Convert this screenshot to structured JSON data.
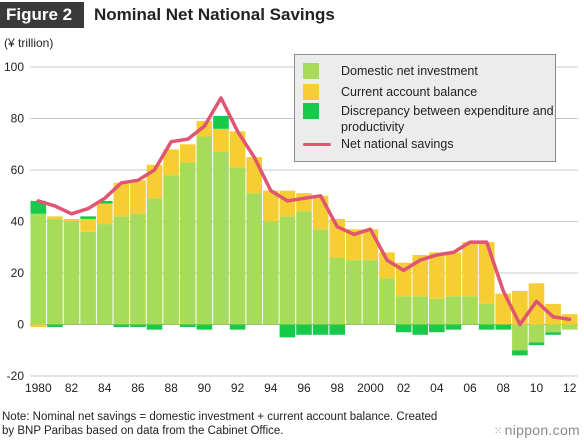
{
  "header": {
    "figure_label": "Figure 2",
    "title": "Nominal Net National Savings"
  },
  "unit_label": "(¥ trillion)",
  "note": "Note: Nominal net savings = domestic investment + current account balance. Created\nby BNP Paribas based on data from the Cabinet Office.",
  "brand": {
    "text": "nippon.com",
    "dots": "⁙"
  },
  "colors": {
    "domestic": "#a6dc5a",
    "current": "#f6cd32",
    "discrepancy": "#18c94a",
    "line": "#e05571",
    "grid": "#c8c8c8"
  },
  "legend": [
    {
      "label": "Domestic net investment",
      "kind": "box",
      "color": "#a6dc5a"
    },
    {
      "label": "Current account balance",
      "kind": "box",
      "color": "#f6cd32"
    },
    {
      "label": "Discrepancy between expenditure and productivity",
      "kind": "box",
      "color": "#18c94a"
    },
    {
      "label": "Net national savings",
      "kind": "line",
      "color": "#e05571"
    }
  ],
  "chart_data": {
    "type": "bar",
    "subtype": "stacked bar with line",
    "x": [
      1980,
      1981,
      1982,
      1983,
      1984,
      1985,
      1986,
      1987,
      1988,
      1989,
      1990,
      1991,
      1992,
      1993,
      1994,
      1995,
      1996,
      1997,
      1998,
      1999,
      2000,
      2001,
      2002,
      2003,
      2004,
      2005,
      2006,
      2007,
      2008,
      2009,
      2010,
      2011,
      2012
    ],
    "x_tick_labels": [
      "1980",
      "82",
      "84",
      "86",
      "88",
      "90",
      "92",
      "94",
      "96",
      "98",
      "2000",
      "02",
      "04",
      "06",
      "08",
      "10",
      "12"
    ],
    "x_tick_years": [
      1980,
      1982,
      1984,
      1986,
      1988,
      1990,
      1992,
      1994,
      1996,
      1998,
      2000,
      2002,
      2004,
      2006,
      2008,
      2010,
      2012
    ],
    "ylim": [
      -20,
      100
    ],
    "y_ticks": [
      -20,
      0,
      20,
      40,
      60,
      80,
      100
    ],
    "grid": true,
    "legend_position": "top-right",
    "series": [
      {
        "name": "Domestic net investment",
        "values": [
          43,
          41,
          40,
          36,
          39,
          42,
          43,
          49,
          58,
          63,
          73,
          67,
          61,
          51,
          40,
          42,
          44,
          37,
          26,
          25,
          25,
          18,
          11,
          11,
          10,
          11,
          11,
          8,
          0,
          -10,
          -7,
          -3,
          -2
        ]
      },
      {
        "name": "Current account balance",
        "values": [
          -1,
          1,
          1,
          5,
          8,
          13,
          13,
          13,
          10,
          7,
          6,
          9,
          14,
          14,
          12,
          10,
          7,
          13,
          15,
          12,
          12,
          10,
          13,
          16,
          18,
          17,
          21,
          24,
          12,
          13,
          16,
          8,
          4
        ]
      },
      {
        "name": "Discrepancy between expenditure and productivity",
        "values": [
          5,
          -1,
          0,
          1,
          1,
          -1,
          -1,
          -2,
          0,
          -1,
          -2,
          5,
          -2,
          0,
          0,
          -5,
          -4,
          -4,
          -4,
          0,
          0,
          0,
          -3,
          -4,
          -3,
          -2,
          0,
          -2,
          -2,
          -2,
          -1,
          -1,
          0
        ]
      },
      {
        "name": "Net national savings",
        "type": "line",
        "values": [
          48,
          46,
          43,
          45,
          49,
          55,
          56,
          60,
          71,
          72,
          77,
          88,
          75,
          65,
          52,
          48,
          49,
          50,
          38,
          35,
          37,
          25,
          21,
          25,
          27,
          28,
          32,
          32,
          13,
          0,
          9,
          3,
          2
        ]
      }
    ]
  }
}
